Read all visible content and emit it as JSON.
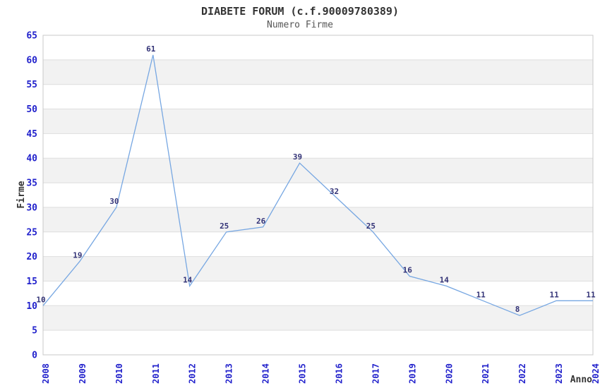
{
  "chart_data": {
    "type": "line",
    "title": "DIABETE FORUM (c.f.90009780389)",
    "subtitle": "Numero Firme",
    "xlabel": "Anno",
    "ylabel": "Firme",
    "categories": [
      "2008",
      "2009",
      "2010",
      "2011",
      "2012",
      "2013",
      "2014",
      "2015",
      "2016",
      "2017",
      "2019",
      "2020",
      "2021",
      "2022",
      "2023",
      "2024"
    ],
    "values": [
      10,
      19,
      30,
      61,
      14,
      25,
      26,
      39,
      32,
      25,
      16,
      14,
      11,
      8,
      11,
      11
    ],
    "point_labels": [
      "10",
      "19",
      "30",
      "61",
      "14",
      "25",
      "26",
      "39",
      "32",
      "25",
      "16",
      "14",
      "11",
      "8",
      "11",
      "11"
    ],
    "yticks": [
      0,
      5,
      10,
      15,
      20,
      25,
      30,
      35,
      40,
      45,
      50,
      55,
      60,
      65
    ],
    "ylim": [
      0,
      65
    ],
    "ytick_step": 5,
    "legend_position": "none",
    "grid": "horizontal-bands",
    "colors": {
      "line": "#77a7e2",
      "tick_label": "#2222cc",
      "point_label": "#333377",
      "band_gray": "#f2f2f2",
      "band_white": "#ffffff",
      "gridline": "#dedede",
      "plot_border": "#c8c8c8",
      "title": "#333333",
      "subtitle": "#555555",
      "axis_title": "#333333"
    }
  }
}
